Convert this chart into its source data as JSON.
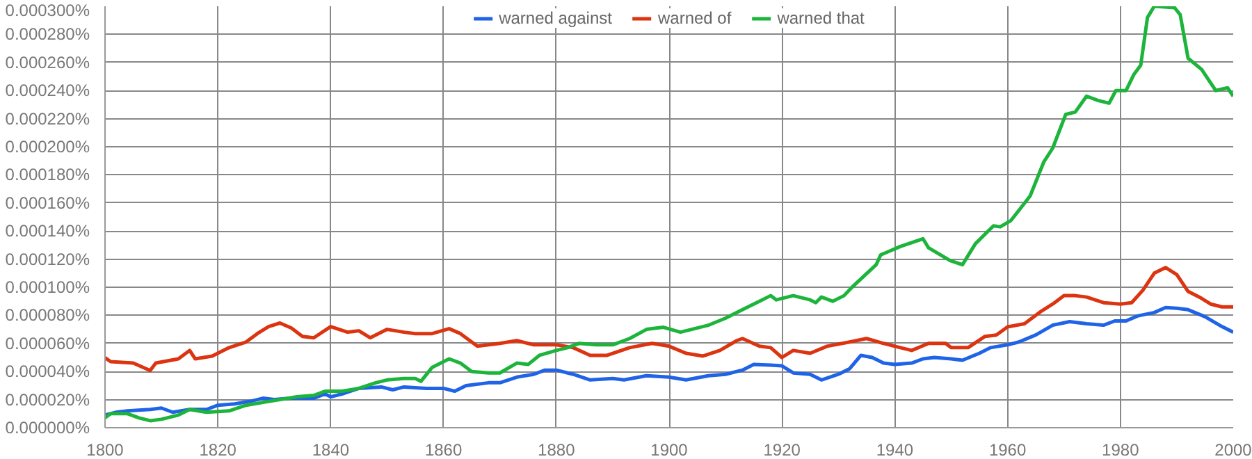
{
  "chart_data": {
    "type": "line",
    "legend": "top",
    "grid": true,
    "line_style": "solid",
    "marker": "none",
    "xlim": [
      1800,
      2000
    ],
    "xticks": [
      1800,
      1820,
      1840,
      1860,
      1880,
      1900,
      1920,
      1940,
      1960,
      1980,
      2000
    ],
    "ylim": [
      0,
      0.0003
    ],
    "yticks": [
      {
        "value": 0,
        "label": "0.000000%"
      },
      {
        "value": 2e-05,
        "label": "0.000020%"
      },
      {
        "value": 4e-05,
        "label": "0.000040%"
      },
      {
        "value": 6e-05,
        "label": "0.000060%"
      },
      {
        "value": 8e-05,
        "label": "0.000080%"
      },
      {
        "value": 0.0001,
        "label": "0.000100%"
      },
      {
        "value": 0.00012,
        "label": "0.000120%"
      },
      {
        "value": 0.00014,
        "label": "0.000140%"
      },
      {
        "value": 0.00016,
        "label": "0.000160%"
      },
      {
        "value": 0.00018,
        "label": "0.000180%"
      },
      {
        "value": 0.0002,
        "label": "0.000200%"
      },
      {
        "value": 0.00022,
        "label": "0.000220%"
      },
      {
        "value": 0.00024,
        "label": "0.000240%"
      },
      {
        "value": 0.00026,
        "label": "0.000260%"
      },
      {
        "value": 0.00028,
        "label": "0.000280%"
      },
      {
        "value": 0.0003,
        "label": "0.000300%"
      }
    ],
    "series": [
      {
        "name": "warned against",
        "color": "#1f63e6",
        "x": [
          1800,
          1802,
          1804,
          1808,
          1810,
          1812,
          1815,
          1818,
          1820,
          1823,
          1826,
          1828,
          1830,
          1833,
          1837,
          1839,
          1840,
          1842,
          1845,
          1849,
          1851,
          1853,
          1857,
          1860,
          1862,
          1864,
          1868,
          1870,
          1873,
          1876,
          1878,
          1880,
          1883,
          1886,
          1890,
          1892,
          1896,
          1900,
          1903,
          1907,
          1910,
          1913,
          1915,
          1918,
          1920,
          1922,
          1925,
          1927,
          1930,
          1932,
          1934,
          1936,
          1938,
          1940,
          1943,
          1945,
          1947,
          1950,
          1952,
          1955,
          1957,
          1960,
          1962,
          1965,
          1968,
          1971,
          1974,
          1977,
          1979,
          1981,
          1983,
          1986,
          1988,
          1990,
          1992,
          1995,
          1998,
          2000
        ],
        "values": [
          9e-06,
          1.1e-05,
          1.2e-05,
          1.3e-05,
          1.4e-05,
          1.1e-05,
          1.3e-05,
          1.3e-05,
          1.6e-05,
          1.7e-05,
          1.9e-05,
          2.1e-05,
          2e-05,
          2.1e-05,
          2.1e-05,
          2.4e-05,
          2.2e-05,
          2.4e-05,
          2.8e-05,
          2.9e-05,
          2.7e-05,
          2.9e-05,
          2.8e-05,
          2.8e-05,
          2.6e-05,
          3e-05,
          3.2e-05,
          3.2e-05,
          3.6e-05,
          3.8e-05,
          4.1e-05,
          4.1e-05,
          3.8e-05,
          3.4e-05,
          3.5e-05,
          3.4e-05,
          3.7e-05,
          3.6e-05,
          3.4e-05,
          3.7e-05,
          3.8e-05,
          4.1e-05,
          4.5e-05,
          4.45e-05,
          4.4e-05,
          3.9e-05,
          3.8e-05,
          3.4e-05,
          3.8e-05,
          4.2e-05,
          5.15e-05,
          5e-05,
          4.6e-05,
          4.5e-05,
          4.6e-05,
          4.9e-05,
          5e-05,
          4.9e-05,
          4.8e-05,
          5.3e-05,
          5.7e-05,
          5.9e-05,
          6.1e-05,
          6.6e-05,
          7.3e-05,
          7.55e-05,
          7.4e-05,
          7.3e-05,
          7.6e-05,
          7.6e-05,
          7.95e-05,
          8.2e-05,
          8.55e-05,
          8.5e-05,
          8.4e-05,
          7.9e-05,
          7.2e-05,
          6.8e-05
        ]
      },
      {
        "name": "warned of",
        "color": "#dc3310",
        "x": [
          1800,
          1801,
          1805,
          1808,
          1809,
          1813,
          1815,
          1816,
          1819,
          1822,
          1825,
          1827,
          1829,
          1831,
          1833,
          1835,
          1837,
          1840,
          1843,
          1845,
          1847,
          1850,
          1853,
          1855,
          1858,
          1861,
          1863,
          1866,
          1870,
          1873,
          1876,
          1880,
          1883,
          1886,
          1889,
          1893,
          1897,
          1900,
          1903,
          1906,
          1909,
          1912,
          1913,
          1916,
          1918,
          1920,
          1922,
          1925,
          1928,
          1932,
          1935,
          1938,
          1940,
          1943,
          1946,
          1949,
          1950,
          1953,
          1956,
          1958,
          1960,
          1963,
          1966,
          1968,
          1970,
          1972,
          1974,
          1977,
          1980,
          1982,
          1984,
          1986,
          1988,
          1990,
          1992,
          1994,
          1996,
          1998,
          2000
        ],
        "values": [
          4.98e-05,
          4.7e-05,
          4.6e-05,
          4.07e-05,
          4.6e-05,
          4.9e-05,
          5.5e-05,
          4.9e-05,
          5.1e-05,
          5.7e-05,
          6.1e-05,
          6.7e-05,
          7.2e-05,
          7.45e-05,
          7.1e-05,
          6.5e-05,
          6.4e-05,
          7.2e-05,
          6.8e-05,
          6.9e-05,
          6.4e-05,
          7e-05,
          6.8e-05,
          6.7e-05,
          6.7e-05,
          7.05e-05,
          6.7e-05,
          5.8e-05,
          6e-05,
          6.2e-05,
          5.9e-05,
          5.9e-05,
          5.7e-05,
          5.15e-05,
          5.15e-05,
          5.7e-05,
          6e-05,
          5.8e-05,
          5.3e-05,
          5.1e-05,
          5.5e-05,
          6.2e-05,
          6.35e-05,
          5.8e-05,
          5.7e-05,
          5e-05,
          5.5e-05,
          5.3e-05,
          5.8e-05,
          6.1e-05,
          6.35e-05,
          6e-05,
          5.8e-05,
          5.5e-05,
          6e-05,
          6e-05,
          5.7e-05,
          5.7e-05,
          6.5e-05,
          6.6e-05,
          7.18e-05,
          7.4e-05,
          8.3e-05,
          8.8e-05,
          9.4e-05,
          9.4e-05,
          9.3e-05,
          8.9e-05,
          8.8e-05,
          8.9e-05,
          9.8e-05,
          0.00011,
          0.000114,
          0.000109,
          9.7e-05,
          9.3e-05,
          8.8e-05,
          8.6e-05,
          8.6e-05
        ]
      },
      {
        "name": "warned that",
        "color": "#1db43c",
        "x": [
          1800,
          1801,
          1804,
          1806,
          1808,
          1810,
          1813,
          1815,
          1818,
          1822,
          1825,
          1828,
          1831,
          1834,
          1837,
          1839,
          1842,
          1845,
          1848,
          1850,
          1853,
          1855,
          1856,
          1858,
          1861,
          1863,
          1865,
          1868,
          1870,
          1873,
          1875,
          1877,
          1880,
          1882,
          1884,
          1887,
          1890,
          1893,
          1896,
          1899,
          1902,
          1904,
          1907,
          1910,
          1913,
          1916,
          1918,
          1919,
          1922,
          1925,
          1926,
          1927,
          1929,
          1931,
          1932.6,
          1936.7,
          1937.5,
          1941,
          1945,
          1946,
          1949.8,
          1952,
          1954.3,
          1957.5,
          1958.7,
          1960.6,
          1964,
          1966.4,
          1968,
          1970.3,
          1972,
          1974,
          1976,
          1978,
          1979.2,
          1981,
          1982.4,
          1983.6,
          1984.8,
          1986,
          1989.6,
          1990.6,
          1992,
          1994.4,
          1996.9,
          1999,
          2000
        ],
        "values": [
          7e-06,
          1e-05,
          1e-05,
          7e-06,
          5e-06,
          6e-06,
          9e-06,
          1.3e-05,
          1.1e-05,
          1.2e-05,
          1.6e-05,
          1.8e-05,
          2e-05,
          2.2e-05,
          2.3e-05,
          2.6e-05,
          2.6e-05,
          2.8e-05,
          3.2e-05,
          3.4e-05,
          3.5e-05,
          3.5e-05,
          3.3e-05,
          4.3e-05,
          4.9e-05,
          4.6e-05,
          4e-05,
          3.9e-05,
          3.9e-05,
          4.6e-05,
          4.5e-05,
          5.15e-05,
          5.5e-05,
          5.7e-05,
          6e-05,
          5.9e-05,
          5.9e-05,
          6.35e-05,
          7e-05,
          7.15e-05,
          6.8e-05,
          7e-05,
          7.3e-05,
          7.8e-05,
          8.4e-05,
          9e-05,
          9.4e-05,
          9.1e-05,
          9.4e-05,
          9.1e-05,
          8.9e-05,
          9.3e-05,
          9e-05,
          9.4e-05,
          0.0001007,
          0.000116,
          0.000123,
          0.000129,
          0.0001345,
          0.000128,
          0.000119,
          0.000116,
          0.000131,
          0.0001437,
          0.000143,
          0.0001475,
          0.000165,
          0.000189,
          0.000199,
          0.000223,
          0.0002247,
          0.000236,
          0.000233,
          0.000231,
          0.00024,
          0.00024,
          0.0002515,
          0.000258,
          0.000292,
          0.0003,
          0.000299,
          0.000294,
          0.000263,
          0.000255,
          0.00024,
          0.000242,
          0.000236
        ]
      }
    ]
  }
}
